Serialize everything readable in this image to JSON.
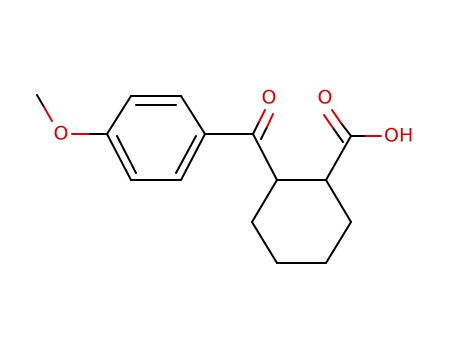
{
  "molecule": {
    "atoms": [
      {
        "label": "O"
      },
      {
        "label": "O"
      },
      {
        "label": "O"
      },
      {
        "label": "OH"
      }
    ]
  }
}
